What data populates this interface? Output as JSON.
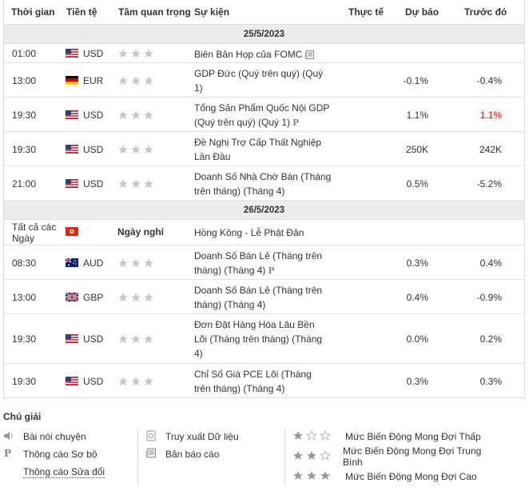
{
  "header": {
    "time": "Thời gian",
    "currency": "Tiền tệ",
    "importance": "Tầm quan trọng",
    "event": "Sự kiện",
    "actual": "Thực tế",
    "forecast": "Dự báo",
    "previous": "Trước đó"
  },
  "dates": [
    "25/5/2023",
    "26/5/2023"
  ],
  "rows": [
    {
      "time": "01:00",
      "cur": "USD",
      "event": "Biên Bản Họp của FOMC",
      "forecast": "",
      "previous": ""
    },
    {
      "time": "13:00",
      "cur": "EUR",
      "event": "GDP Đức (Quý trên quý) (Quý 1)",
      "forecast": "-0.1%",
      "previous": "-0.4%"
    },
    {
      "time": "19:30",
      "cur": "USD",
      "event": "Tổng Sản Phẩm Quốc Nội GDP (Quý trên quý) (Quý 1)",
      "forecast": "1.1%",
      "previous": "1.1%"
    },
    {
      "time": "19:30",
      "cur": "USD",
      "event": "Đề Nghị Trợ Cấp Thất Nghiệp Lần Đầu",
      "forecast": "250K",
      "previous": "242K"
    },
    {
      "time": "21:00",
      "cur": "USD",
      "event": "Doanh Số Nhà Chờ Bán (Tháng trên tháng) (Tháng 4)",
      "forecast": "0.5%",
      "previous": "-5.2%"
    },
    {
      "time": "Tất cả các Ngày",
      "cur": "",
      "holiday": "Ngày nghỉ",
      "event": "Hồng Kông - Lễ Phật Đản"
    },
    {
      "time": "08:30",
      "cur": "AUD",
      "event": "Doanh Số Bán Lẻ (Tháng trên tháng) (Tháng 4)",
      "forecast": "0.3%",
      "previous": "0.4%"
    },
    {
      "time": "13:00",
      "cur": "GBP",
      "event": "Doanh Số Bán Lẻ (Tháng trên tháng) (Tháng 4)",
      "forecast": "0.4%",
      "previous": "-0.9%"
    },
    {
      "time": "19:30",
      "cur": "USD",
      "event": "Đơn Đặt Hàng Hóa Lâu Bền Lõi (Tháng trên tháng) (Tháng 4)",
      "forecast": "0.0%",
      "previous": "0.2%"
    },
    {
      "time": "19:30",
      "cur": "USD",
      "event": "Chỉ Số Giá PCE Lõi (Tháng trên tháng) (Tháng 4)",
      "forecast": "0.3%",
      "previous": "0.3%"
    }
  ],
  "legend": {
    "title": "Chú giải",
    "speech": "Bài nói chuyện",
    "preliminary": "Thông cáo Sơ bộ",
    "revised": "Thông cáo Sửa đổi",
    "retrieve": "Truy xuất Dữ liệu",
    "report": "Bản báo cáo",
    "low": "Mức Biến Động Mong Đợi Thấp",
    "medium": "Mức Biến Động Mong Đợi Trung Bình",
    "high": "Mức Biến Động Mong Đợi Cao"
  },
  "colors": {
    "star": "#c8c8c8",
    "negative_highlight": "#e00000"
  }
}
